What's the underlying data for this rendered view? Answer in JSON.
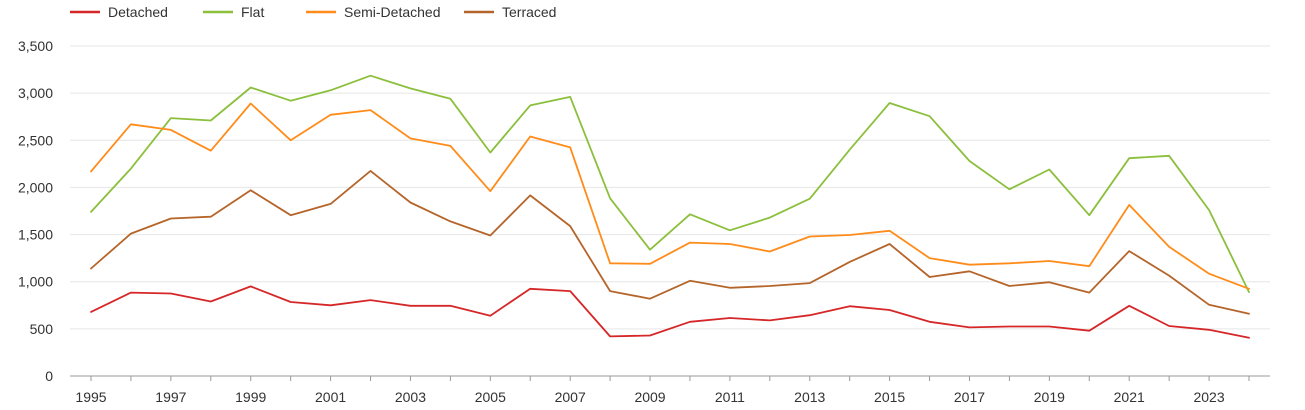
{
  "chart_data": {
    "type": "line",
    "title": "",
    "xlabel": "",
    "ylabel": "",
    "x": [
      1995,
      1996,
      1997,
      1998,
      1999,
      2000,
      2001,
      2002,
      2003,
      2004,
      2005,
      2006,
      2007,
      2008,
      2009,
      2010,
      2011,
      2012,
      2013,
      2014,
      2015,
      2016,
      2017,
      2018,
      2019,
      2020,
      2021,
      2022,
      2023,
      2024
    ],
    "x_tick_labels": [
      "1995",
      "1997",
      "1999",
      "2001",
      "2003",
      "2005",
      "2007",
      "2009",
      "2011",
      "2013",
      "2015",
      "2017",
      "2019",
      "2021",
      "2023"
    ],
    "y_ticks": [
      0,
      500,
      1000,
      1500,
      2000,
      2500,
      3000,
      3500
    ],
    "y_tick_labels": [
      "0",
      "500",
      "1,000",
      "1,500",
      "2,000",
      "2,500",
      "3,000",
      "3,500"
    ],
    "ylim": [
      0,
      3500
    ],
    "xlim": [
      1995,
      2024
    ],
    "grid": true,
    "legend_position": "top-left",
    "series": [
      {
        "name": "Detached",
        "color": "#d62728",
        "values": [
          680,
          885,
          875,
          790,
          950,
          785,
          750,
          805,
          745,
          745,
          640,
          925,
          900,
          420,
          430,
          575,
          615,
          590,
          645,
          740,
          700,
          575,
          515,
          525,
          525,
          480,
          745,
          530,
          490,
          405
        ]
      },
      {
        "name": "Flat",
        "color": "#8bbf3c",
        "values": [
          1740,
          2200,
          2735,
          2710,
          3060,
          2920,
          3030,
          3185,
          3050,
          2940,
          2370,
          2870,
          2960,
          1885,
          1340,
          1715,
          1545,
          1680,
          1880,
          2400,
          2895,
          2755,
          2280,
          1980,
          2190,
          1705,
          2310,
          2335,
          1760,
          890
        ]
      },
      {
        "name": "Semi-Detached",
        "color": "#ff8c1a",
        "values": [
          2170,
          2670,
          2610,
          2390,
          2890,
          2500,
          2770,
          2820,
          2520,
          2440,
          1960,
          2540,
          2425,
          1195,
          1190,
          1415,
          1400,
          1320,
          1480,
          1495,
          1540,
          1250,
          1180,
          1195,
          1220,
          1165,
          1815,
          1370,
          1085,
          925
        ]
      },
      {
        "name": "Terraced",
        "color": "#b5652a",
        "values": [
          1140,
          1510,
          1670,
          1690,
          1970,
          1705,
          1825,
          2175,
          1840,
          1640,
          1490,
          1915,
          1590,
          900,
          820,
          1010,
          935,
          955,
          985,
          1210,
          1400,
          1050,
          1110,
          955,
          995,
          885,
          1325,
          1065,
          755,
          660
        ]
      }
    ]
  }
}
